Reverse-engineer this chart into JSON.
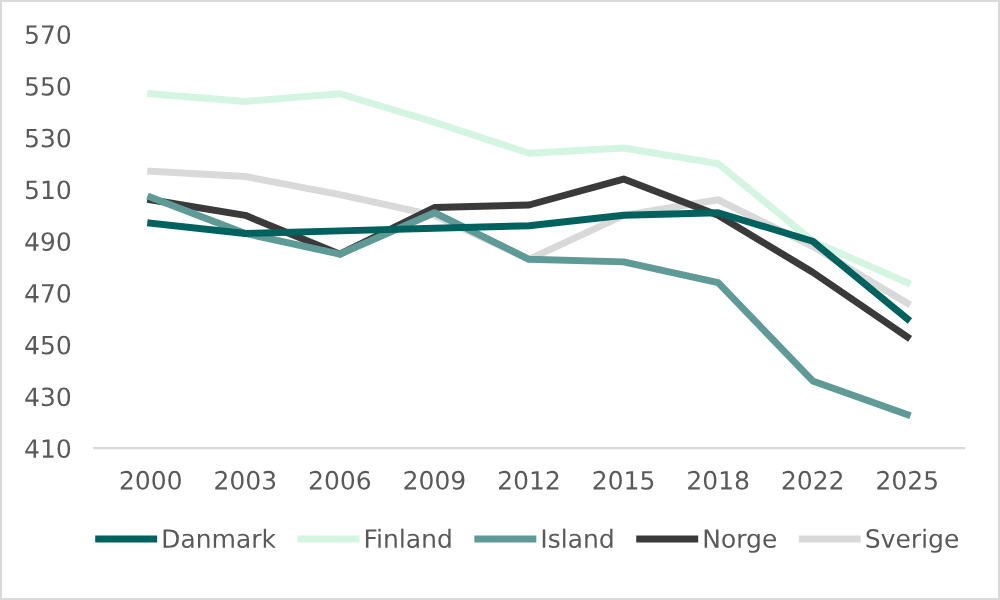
{
  "chart_data": {
    "type": "line",
    "categories": [
      "2000",
      "2003",
      "2006",
      "2009",
      "2012",
      "2015",
      "2018",
      "2022",
      "2025"
    ],
    "series": [
      {
        "name": "Danmark",
        "color": "#00625e",
        "values": [
          497,
          493,
          494,
          495,
          496,
          500,
          501,
          490,
          460
        ]
      },
      {
        "name": "Finland",
        "color": "#d3f5e2",
        "values": [
          547,
          544,
          547,
          536,
          524,
          526,
          520,
          490,
          474
        ]
      },
      {
        "name": "Island",
        "color": "#5e9a96",
        "values": [
          507,
          493,
          485,
          501,
          483,
          482,
          474,
          436,
          423
        ]
      },
      {
        "name": "Norge",
        "color": "#3a3a3a",
        "values": [
          506,
          500,
          485,
          503,
          504,
          514,
          500,
          478,
          453
        ]
      },
      {
        "name": "Sverige",
        "color": "#d9d9d9",
        "values": [
          517,
          515,
          508,
          500,
          483,
          500,
          506,
          488,
          466
        ]
      }
    ],
    "ylim": [
      410,
      570
    ],
    "yticks": [
      410,
      430,
      450,
      470,
      490,
      510,
      530,
      550,
      570
    ],
    "grid": false,
    "legend": "bottom",
    "marker": "none",
    "line_style": "solid"
  }
}
